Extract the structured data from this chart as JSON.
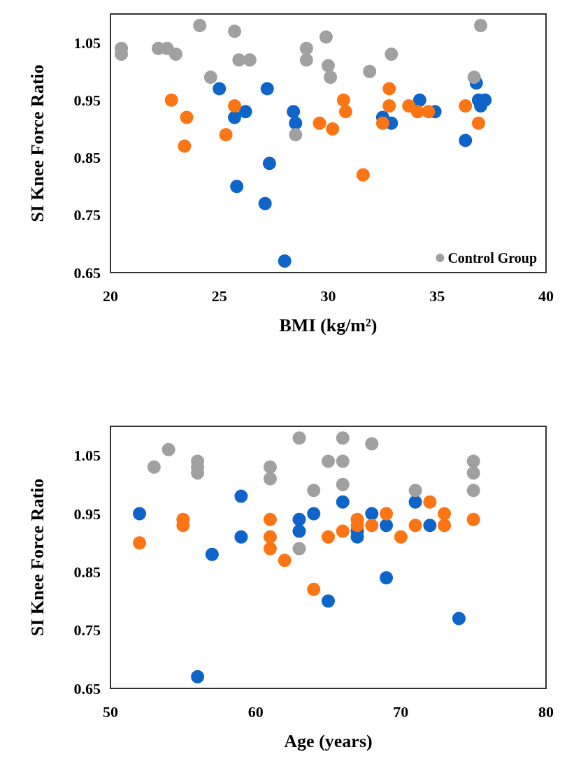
{
  "chart_data": [
    {
      "type": "scatter",
      "xlabel": "BMI (kg/m²)",
      "ylabel": "SI Knee Force Ratio",
      "xlim": [
        20,
        40
      ],
      "xticks": [
        20,
        25,
        30,
        35,
        40
      ],
      "ylim": [
        0.65,
        1.1
      ],
      "yticks": [
        0.65,
        0.75,
        0.85,
        0.95,
        1.05
      ],
      "grid": false,
      "legend": "bottom right",
      "marker": "circle",
      "series": [
        {
          "color": "#0e64c8",
          "x": [
            25.0,
            25.7,
            26.2,
            25.8,
            27.2,
            27.3,
            27.1,
            28.0,
            28.4,
            28.5,
            32.5,
            32.9,
            34.2,
            34.9,
            36.3,
            36.8,
            36.9,
            37.0,
            37.2
          ],
          "values": [
            0.97,
            0.92,
            0.93,
            0.8,
            0.97,
            0.84,
            0.77,
            0.67,
            0.93,
            0.91,
            0.92,
            0.91,
            0.95,
            0.93,
            0.88,
            0.98,
            0.95,
            0.94,
            0.95
          ]
        },
        {
          "color": "#fc7514",
          "x": [
            22.8,
            23.5,
            23.4,
            25.3,
            25.7,
            29.6,
            30.2,
            30.7,
            30.8,
            31.6,
            32.5,
            32.8,
            32.8,
            33.7,
            34.1,
            34.6,
            36.3,
            36.9
          ],
          "values": [
            0.95,
            0.92,
            0.87,
            0.89,
            0.94,
            0.91,
            0.9,
            0.95,
            0.93,
            0.82,
            0.91,
            0.97,
            0.94,
            0.94,
            0.93,
            0.93,
            0.94,
            0.91
          ]
        },
        {
          "name": "Control Group",
          "color": "#a0a0a0",
          "x": [
            20.5,
            20.5,
            22.2,
            22.6,
            23.0,
            24.1,
            24.6,
            25.7,
            25.9,
            26.4,
            28.5,
            29.0,
            29.0,
            29.9,
            30.0,
            30.1,
            31.9,
            32.9,
            36.7,
            37.0
          ],
          "values": [
            1.04,
            1.03,
            1.04,
            1.04,
            1.03,
            1.08,
            0.99,
            1.07,
            1.02,
            1.02,
            0.89,
            1.04,
            1.02,
            1.06,
            1.01,
            0.99,
            1.0,
            1.03,
            0.99,
            1.08
          ]
        }
      ]
    },
    {
      "type": "scatter",
      "xlabel": "Age (years)",
      "ylabel": "SI Knee Force Ratio",
      "xlim": [
        50,
        80
      ],
      "xticks": [
        50,
        60,
        70,
        80
      ],
      "ylim": [
        0.65,
        1.1
      ],
      "yticks": [
        0.65,
        0.75,
        0.85,
        0.95,
        1.05
      ],
      "grid": false,
      "legend": false,
      "marker": "circle",
      "series": [
        {
          "color": "#0e64c8",
          "x": [
            52,
            56,
            57,
            59,
            59,
            63,
            63,
            64,
            65,
            66,
            67,
            67,
            68,
            69,
            69,
            71,
            72,
            74
          ],
          "values": [
            0.95,
            0.67,
            0.88,
            0.98,
            0.91,
            0.94,
            0.92,
            0.95,
            0.8,
            0.97,
            0.91,
            0.92,
            0.95,
            0.93,
            0.84,
            0.97,
            0.93,
            0.77
          ]
        },
        {
          "color": "#fc7514",
          "x": [
            52,
            55,
            55,
            61,
            61,
            61,
            62,
            64,
            65,
            66,
            67,
            67,
            68,
            69,
            70,
            71,
            72,
            73,
            73,
            75
          ],
          "values": [
            0.9,
            0.94,
            0.93,
            0.94,
            0.91,
            0.89,
            0.87,
            0.82,
            0.91,
            0.92,
            0.94,
            0.93,
            0.93,
            0.95,
            0.91,
            0.93,
            0.97,
            0.95,
            0.93,
            0.94
          ]
        },
        {
          "color": "#a0a0a0",
          "x": [
            53,
            54,
            56,
            56,
            56,
            61,
            61,
            63,
            63,
            64,
            65,
            66,
            66,
            66,
            68,
            71,
            75,
            75,
            75
          ],
          "values": [
            1.03,
            1.06,
            1.04,
            1.03,
            1.02,
            1.03,
            1.01,
            1.08,
            0.89,
            0.99,
            1.04,
            1.08,
            1.04,
            1.0,
            1.07,
            0.99,
            1.04,
            1.02,
            0.99
          ]
        }
      ]
    }
  ]
}
